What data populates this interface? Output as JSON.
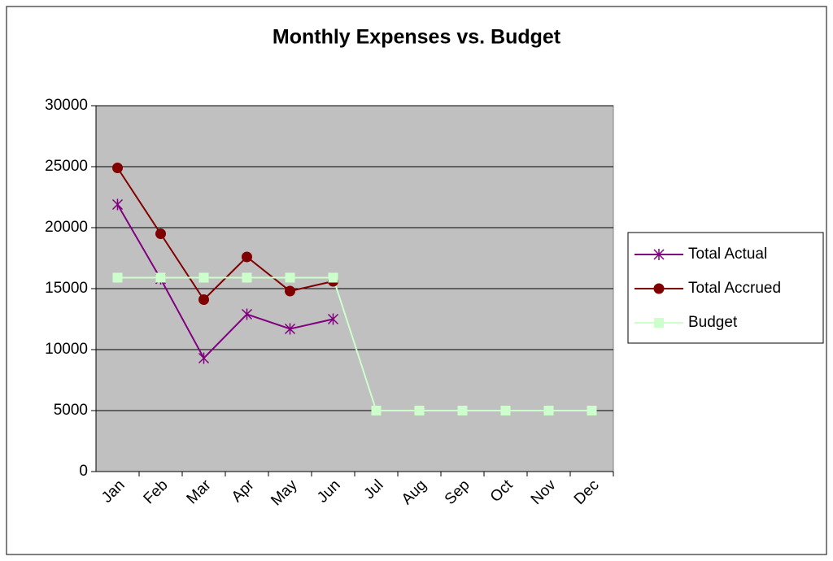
{
  "chart_data": {
    "type": "line",
    "title": "Monthly Expenses vs. Budget",
    "categories": [
      "Jan",
      "Feb",
      "Mar",
      "Apr",
      "May",
      "Jun",
      "Jul",
      "Aug",
      "Sep",
      "Oct",
      "Nov",
      "Dec"
    ],
    "series": [
      {
        "name": "Total Actual",
        "color": "#800080",
        "marker": "star",
        "values": [
          21900,
          15800,
          9300,
          12900,
          11700,
          12500,
          null,
          null,
          null,
          null,
          null,
          null
        ]
      },
      {
        "name": "Total Accrued",
        "color": "#800000",
        "marker": "circle",
        "values": [
          24900,
          19500,
          14100,
          17600,
          14800,
          15600,
          null,
          null,
          null,
          null,
          null,
          null
        ]
      },
      {
        "name": "Budget",
        "color": "#ccffcc",
        "marker": "square",
        "values": [
          15900,
          15900,
          15900,
          15900,
          15900,
          15900,
          5000,
          5000,
          5000,
          5000,
          5000,
          5000
        ]
      }
    ],
    "ylim": [
      0,
      30000
    ],
    "yticks": [
      0,
      5000,
      10000,
      15000,
      20000,
      25000,
      30000
    ],
    "grid": true,
    "legend": "right",
    "plot_background": "#c0c0c0"
  }
}
